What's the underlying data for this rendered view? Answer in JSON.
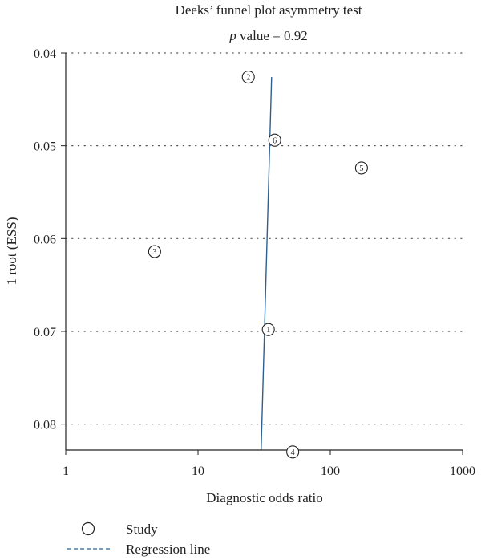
{
  "chart_data": {
    "type": "scatter",
    "title": "Deeks’ funnel plot asymmetry test",
    "subtitle_italic": "p",
    "subtitle_rest": " value = 0.92",
    "xlabel": "Diagnostic odds ratio",
    "ylabel": "1 root (ESS)",
    "x_scale": "log",
    "xlim": [
      1,
      1000
    ],
    "ylim": [
      0.04,
      0.0828
    ],
    "y_inverted": true,
    "x_ticks": [
      1,
      10,
      100,
      1000
    ],
    "x_tick_labels": [
      "1",
      "10",
      "100",
      "1000"
    ],
    "y_ticks": [
      0.04,
      0.05,
      0.06,
      0.07,
      0.08
    ],
    "y_tick_labels": [
      "0.04",
      "0.05",
      "0.06",
      "0.07",
      "0.08"
    ],
    "grid": "horizontal dotted",
    "points": [
      {
        "label": "1",
        "x": 34,
        "y": 0.0698
      },
      {
        "label": "2",
        "x": 24,
        "y": 0.0426
      },
      {
        "label": "3",
        "x": 4.7,
        "y": 0.0614
      },
      {
        "label": "4",
        "x": 52,
        "y": 0.083
      },
      {
        "label": "5",
        "x": 172,
        "y": 0.0524
      },
      {
        "label": "6",
        "x": 38,
        "y": 0.0494
      }
    ],
    "regression_line": [
      {
        "x": 36,
        "y": 0.0426
      },
      {
        "x": 30,
        "y": 0.0828
      }
    ],
    "legend": {
      "position": "bottom-left",
      "study_label": "Study",
      "regression_label": "Regression line"
    },
    "colors": {
      "regression": "#2e5f8f",
      "axes": "#222222",
      "grid": "#555555"
    }
  }
}
